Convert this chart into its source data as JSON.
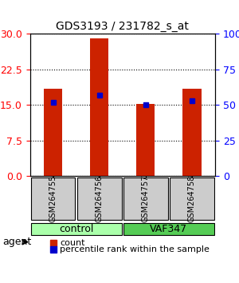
{
  "title": "GDS3193 / 231782_s_at",
  "samples": [
    "GSM264755",
    "GSM264756",
    "GSM264757",
    "GSM264758"
  ],
  "count_values": [
    18.5,
    29.0,
    15.2,
    18.5
  ],
  "percentile_values": [
    52,
    57,
    50,
    53
  ],
  "groups": [
    {
      "label": "control",
      "samples": [
        0,
        1
      ],
      "color": "#aaffaa"
    },
    {
      "label": "VAF347",
      "samples": [
        2,
        3
      ],
      "color": "#55cc55"
    }
  ],
  "ylim_left": [
    0,
    30
  ],
  "ylim_right": [
    0,
    100
  ],
  "yticks_left": [
    0,
    7.5,
    15,
    22.5,
    30
  ],
  "yticks_right": [
    0,
    25,
    50,
    75,
    100
  ],
  "bar_color": "#cc2200",
  "dot_color": "#0000cc",
  "bar_width": 0.4,
  "agent_label": "agent",
  "legend_count_label": "count",
  "legend_pct_label": "percentile rank within the sample"
}
